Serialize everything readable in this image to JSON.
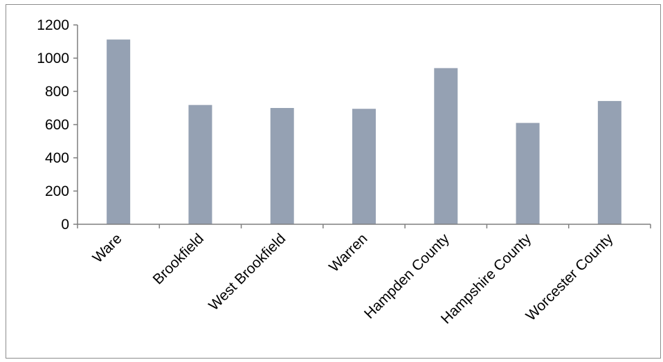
{
  "chart_data": {
    "type": "bar",
    "title": "",
    "xlabel": "",
    "ylabel": "",
    "categories": [
      "Ware",
      "Brookfield",
      "West Brookfield",
      "Warren",
      "Hampden County",
      "Hampshire County",
      "Worcester County"
    ],
    "values": [
      1112,
      718,
      700,
      695,
      940,
      610,
      742
    ],
    "ylim": [
      0,
      1200
    ],
    "yticks": [
      "0",
      "200",
      "400",
      "600",
      "800",
      "1000",
      "1200"
    ],
    "grid": false,
    "legend": "none",
    "bar_color": "#95A1B3",
    "axis_color": "#7F7F7F"
  }
}
